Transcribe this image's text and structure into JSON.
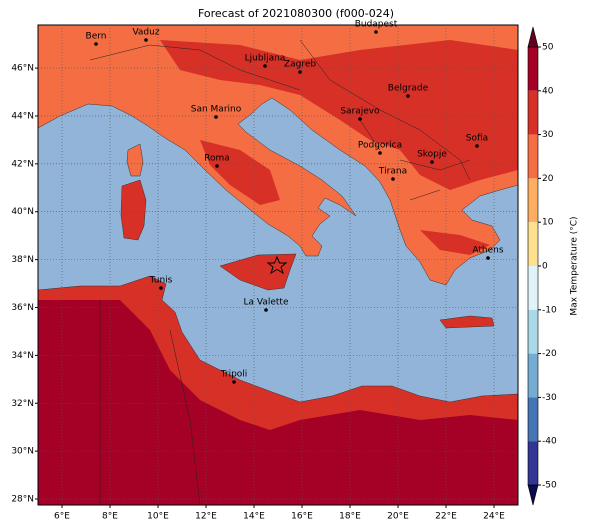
{
  "chart_data": {
    "type": "map",
    "title": "Forecast of 2021080300 (f000-024)",
    "xlim": [
      5,
      25
    ],
    "ylim": [
      27.75,
      47.8
    ],
    "xticks": [
      {
        "value": 6,
        "label": "6°E"
      },
      {
        "value": 8,
        "label": "8°E"
      },
      {
        "value": 10,
        "label": "10°E"
      },
      {
        "value": 12,
        "label": "12°E"
      },
      {
        "value": 14,
        "label": "14°E"
      },
      {
        "value": 16,
        "label": "16°E"
      },
      {
        "value": 18,
        "label": "18°E"
      },
      {
        "value": 20,
        "label": "20°E"
      },
      {
        "value": 22,
        "label": "22°E"
      },
      {
        "value": 24,
        "label": "24°E"
      }
    ],
    "yticks": [
      {
        "value": 28,
        "label": "28°N"
      },
      {
        "value": 30,
        "label": "30°N"
      },
      {
        "value": 32,
        "label": "32°N"
      },
      {
        "value": 34,
        "label": "34°N"
      },
      {
        "value": 36,
        "label": "36°N"
      },
      {
        "value": 38,
        "label": "38°N"
      },
      {
        "value": 40,
        "label": "40°N"
      },
      {
        "value": 42,
        "label": "42°N"
      },
      {
        "value": 44,
        "label": "44°N"
      },
      {
        "value": 46,
        "label": "46°N"
      }
    ],
    "grid": true,
    "cities": [
      "Bern",
      "Vaduz",
      "Budapest",
      "Ljubljana",
      "Zagreb",
      "Belgrade",
      "San Marino",
      "Sarajevo",
      "Sofia",
      "Podgorica",
      "Skopje",
      "Roma",
      "Tirana",
      "Athens",
      "Tunis",
      "La Valette",
      "Tripoli"
    ],
    "colorbar": {
      "label": "Max Temperature (°C)",
      "clim": [
        -50,
        50
      ],
      "ticks": [
        50,
        40,
        30,
        20,
        10,
        0,
        -10,
        -20,
        -30,
        -40,
        -50
      ],
      "colors": [
        "#a50026",
        "#d73027",
        "#f46d43",
        "#fdae61",
        "#fee090",
        "#e0f3f8",
        "#abd9e9",
        "#74add1",
        "#4575b4",
        "#313695"
      ],
      "extend_colors": [
        "#67001f",
        "#0b0b50"
      ]
    }
  }
}
